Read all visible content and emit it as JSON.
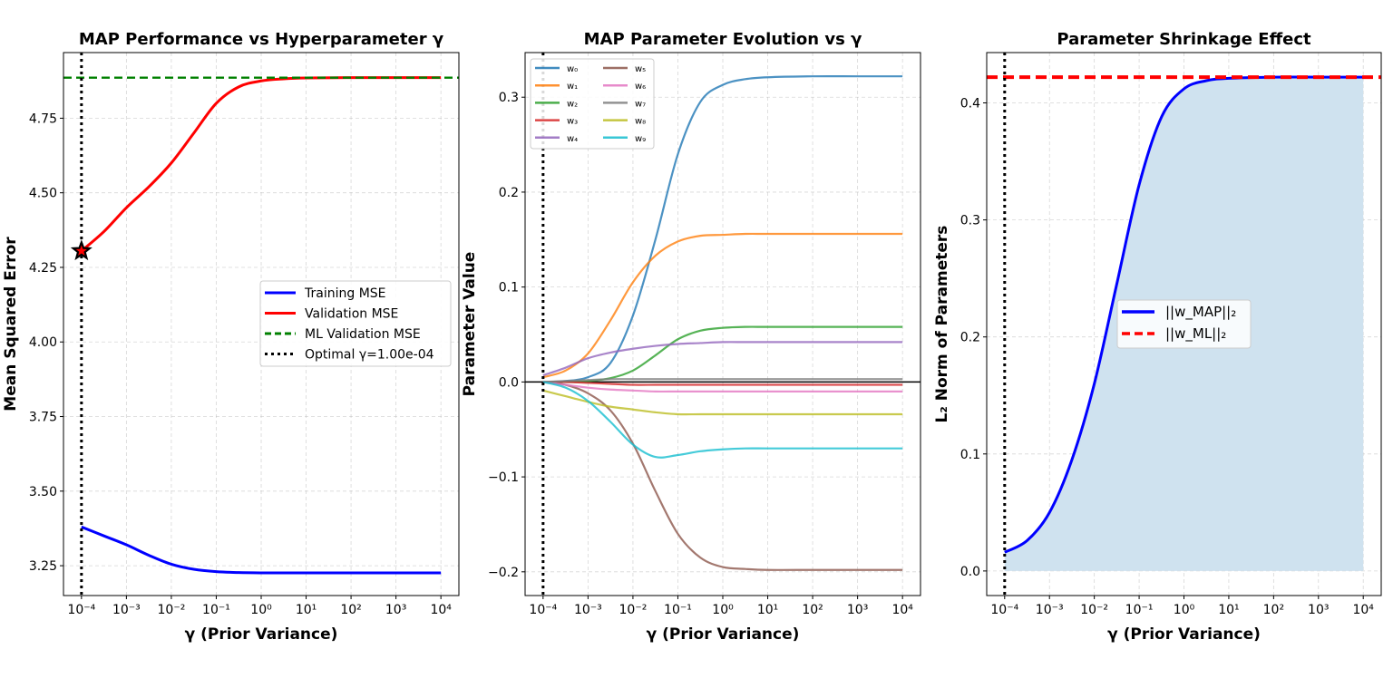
{
  "chart_data": [
    {
      "type": "line",
      "title": "MAP Performance vs Hyperparameter γ",
      "xlabel": "γ (Prior Variance)",
      "ylabel": "Mean Squared Error",
      "xscale": "log",
      "xlim_exp": [
        -4,
        4
      ],
      "ylim": [
        3.15,
        4.97
      ],
      "x_tick_labels": [
        "10⁻⁴",
        "10⁻³",
        "10⁻²",
        "10⁻¹",
        "10⁰",
        "10¹",
        "10²",
        "10³",
        "10⁴"
      ],
      "y_tick_labels": [
        "3.25",
        "3.50",
        "3.75",
        "4.00",
        "4.25",
        "4.50",
        "4.75"
      ],
      "y_ticks": [
        3.25,
        3.5,
        3.75,
        4.0,
        4.25,
        4.5,
        4.75
      ],
      "grid": true,
      "legend_position": "center-right",
      "x_exp": [
        -4,
        -3.5,
        -3,
        -2.5,
        -2,
        -1.5,
        -1,
        -0.5,
        0,
        0.5,
        1,
        2,
        3,
        4
      ],
      "series": [
        {
          "name": "Training MSE",
          "color": "#0000ff",
          "style": "solid",
          "y": [
            3.38,
            3.35,
            3.32,
            3.285,
            3.255,
            3.238,
            3.23,
            3.227,
            3.226,
            3.226,
            3.226,
            3.226,
            3.226,
            3.226
          ]
        },
        {
          "name": "Validation MSE",
          "color": "#ff0000",
          "style": "solid",
          "y": [
            4.305,
            4.37,
            4.45,
            4.52,
            4.6,
            4.7,
            4.8,
            4.855,
            4.875,
            4.882,
            4.885,
            4.886,
            4.886,
            4.886
          ]
        },
        {
          "name": "ML Validation MSE",
          "color": "#008000",
          "style": "dashed",
          "y_const": 4.886
        },
        {
          "name": "Optimal γ=1.00e-04",
          "color": "#000000",
          "style": "dotted",
          "x_const_exp": -4
        }
      ],
      "markers": [
        {
          "shape": "star",
          "x_exp": -4,
          "y": 4.305,
          "color": "#ff0000"
        }
      ]
    },
    {
      "type": "line",
      "title": "MAP Parameter Evolution vs γ",
      "xlabel": "γ (Prior Variance)",
      "ylabel": "Parameter Value",
      "xscale": "log",
      "xlim_exp": [
        -4,
        4
      ],
      "ylim": [
        -0.225,
        0.347
      ],
      "x_tick_labels": [
        "10⁻⁴",
        "10⁻³",
        "10⁻²",
        "10⁻¹",
        "10⁰",
        "10¹",
        "10²",
        "10³",
        "10⁴"
      ],
      "y_tick_labels": [
        "−0.2",
        "−0.1",
        "0.0",
        "0.1",
        "0.2",
        "0.3"
      ],
      "y_ticks": [
        -0.2,
        -0.1,
        0.0,
        0.1,
        0.2,
        0.3
      ],
      "grid": true,
      "legend_position": "upper-left",
      "x_exp": [
        -4,
        -3.5,
        -3,
        -2.5,
        -2,
        -1.5,
        -1,
        -0.5,
        0,
        0.5,
        1,
        2,
        3,
        4
      ],
      "series": [
        {
          "name": "w₀",
          "color": "#1f77b4",
          "y": [
            0.0,
            0.001,
            0.005,
            0.02,
            0.07,
            0.15,
            0.24,
            0.295,
            0.313,
            0.319,
            0.321,
            0.322,
            0.322,
            0.322
          ]
        },
        {
          "name": "w₁",
          "color": "#ff7f0e",
          "y": [
            0.005,
            0.012,
            0.03,
            0.065,
            0.105,
            0.133,
            0.148,
            0.154,
            0.155,
            0.156,
            0.156,
            0.156,
            0.156,
            0.156
          ]
        },
        {
          "name": "w₂",
          "color": "#2ca02c",
          "y": [
            0.0,
            0.0,
            0.001,
            0.004,
            0.012,
            0.028,
            0.045,
            0.054,
            0.057,
            0.058,
            0.058,
            0.058,
            0.058,
            0.058
          ]
        },
        {
          "name": "w₃",
          "color": "#d62728",
          "y": [
            0.0,
            0.0,
            -0.001,
            -0.002,
            -0.003,
            -0.003,
            -0.003,
            -0.003,
            -0.003,
            -0.003,
            -0.003,
            -0.003,
            -0.003,
            -0.003
          ]
        },
        {
          "name": "w₄",
          "color": "#9467bd",
          "y": [
            0.007,
            0.015,
            0.025,
            0.031,
            0.035,
            0.038,
            0.04,
            0.041,
            0.042,
            0.042,
            0.042,
            0.042,
            0.042,
            0.042
          ]
        },
        {
          "name": "w₅",
          "color": "#8c564b",
          "y": [
            0.0,
            -0.003,
            -0.012,
            -0.03,
            -0.065,
            -0.115,
            -0.16,
            -0.185,
            -0.195,
            -0.197,
            -0.198,
            -0.198,
            -0.198,
            -0.198
          ]
        },
        {
          "name": "w₆",
          "color": "#e377c2",
          "y": [
            0.0,
            -0.003,
            -0.006,
            -0.008,
            -0.009,
            -0.01,
            -0.01,
            -0.01,
            -0.01,
            -0.01,
            -0.01,
            -0.01,
            -0.01,
            -0.01
          ]
        },
        {
          "name": "w₇",
          "color": "#7f7f7f",
          "y": [
            0.0,
            0.001,
            0.002,
            0.003,
            0.003,
            0.003,
            0.003,
            0.003,
            0.003,
            0.003,
            0.003,
            0.003,
            0.003,
            0.003
          ]
        },
        {
          "name": "w₈",
          "color": "#bcbd22",
          "y": [
            -0.009,
            -0.015,
            -0.021,
            -0.026,
            -0.029,
            -0.032,
            -0.034,
            -0.034,
            -0.034,
            -0.034,
            -0.034,
            -0.034,
            -0.034,
            -0.034
          ]
        },
        {
          "name": "w₉",
          "color": "#17becf",
          "y": [
            0.0,
            -0.006,
            -0.02,
            -0.042,
            -0.066,
            -0.079,
            -0.077,
            -0.073,
            -0.071,
            -0.07,
            -0.07,
            -0.07,
            -0.07,
            -0.07
          ]
        }
      ],
      "reference_lines": [
        {
          "y": 0,
          "color": "#000000"
        },
        {
          "x_exp": -4,
          "color": "#000000",
          "style": "dotted"
        }
      ]
    },
    {
      "type": "area",
      "title": "Parameter Shrinkage Effect",
      "xlabel": "γ (Prior Variance)",
      "ylabel": "L₂ Norm of Parameters",
      "xscale": "log",
      "xlim_exp": [
        -4,
        4
      ],
      "ylim": [
        -0.021,
        0.443
      ],
      "x_tick_labels": [
        "10⁻⁴",
        "10⁻³",
        "10⁻²",
        "10⁻¹",
        "10⁰",
        "10¹",
        "10²",
        "10³",
        "10⁴"
      ],
      "y_tick_labels": [
        "0.0",
        "0.1",
        "0.2",
        "0.3",
        "0.4"
      ],
      "y_ticks": [
        0.0,
        0.1,
        0.2,
        0.3,
        0.4
      ],
      "grid": true,
      "legend_position": "center-left",
      "fill_color": "#cfe2ef",
      "x_exp": [
        -4,
        -3.5,
        -3,
        -2.5,
        -2,
        -1.5,
        -1,
        -0.5,
        0,
        0.5,
        1,
        2,
        3,
        4
      ],
      "series": [
        {
          "name": "||w_MAP||₂",
          "color": "#0000ff",
          "style": "solid",
          "y": [
            0.016,
            0.026,
            0.05,
            0.095,
            0.16,
            0.245,
            0.33,
            0.388,
            0.412,
            0.419,
            0.421,
            0.422,
            0.422,
            0.422
          ]
        },
        {
          "name": "||w_ML||₂",
          "color": "#ff0000",
          "style": "dashed",
          "y_const": 0.422
        }
      ],
      "reference_lines": [
        {
          "x_exp": -4,
          "color": "#000000",
          "style": "dotted"
        }
      ]
    }
  ]
}
